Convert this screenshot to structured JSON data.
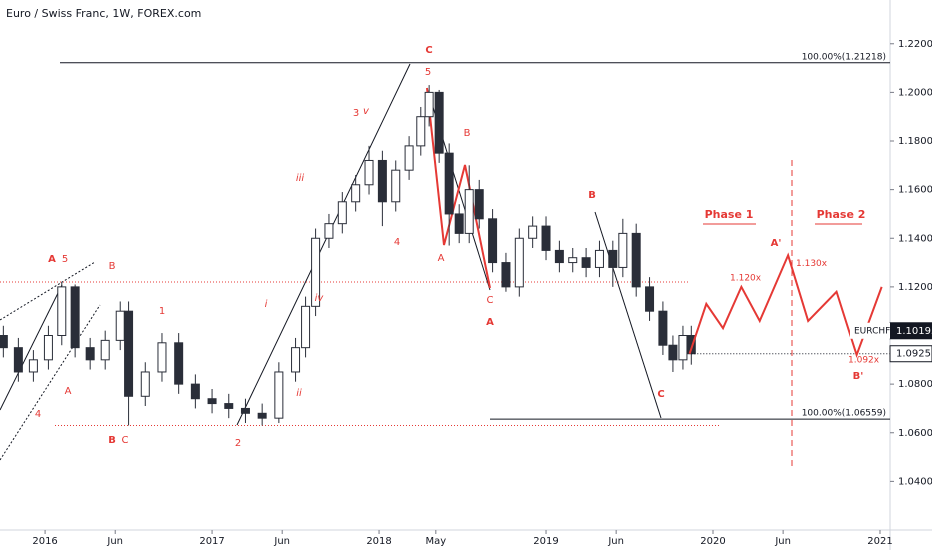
{
  "chart_data": {
    "type": "candlestick",
    "title": "Euro / Swiss Franc, 1W, FOREX.com",
    "symbol": "EURCHF",
    "color": "#2a2e39",
    "x": [
      2015.75,
      2015.84,
      2015.93,
      2016.02,
      2016.1,
      2016.18,
      2016.27,
      2016.36,
      2016.45,
      2016.5,
      2016.6,
      2016.7,
      2016.8,
      2016.9,
      2017.0,
      2017.1,
      2017.2,
      2017.3,
      2017.4,
      2017.5,
      2017.56,
      2017.62,
      2017.7,
      2017.78,
      2017.86,
      2017.94,
      2018.02,
      2018.1,
      2018.18,
      2018.25,
      2018.3,
      2018.36,
      2018.42,
      2018.48,
      2018.54,
      2018.6,
      2018.68,
      2018.76,
      2018.84,
      2018.92,
      2019.0,
      2019.08,
      2019.16,
      2019.24,
      2019.32,
      2019.4,
      2019.46,
      2019.54,
      2019.62,
      2019.7,
      2019.76,
      2019.82,
      2019.87
    ],
    "open": [
      1.1,
      1.095,
      1.085,
      1.09,
      1.1,
      1.12,
      1.095,
      1.09,
      1.098,
      1.11,
      1.075,
      1.085,
      1.097,
      1.08,
      1.074,
      1.072,
      1.07,
      1.068,
      1.066,
      1.085,
      1.095,
      1.112,
      1.14,
      1.146,
      1.155,
      1.162,
      1.172,
      1.155,
      1.168,
      1.178,
      1.19,
      1.2,
      1.175,
      1.15,
      1.142,
      1.16,
      1.148,
      1.13,
      1.12,
      1.14,
      1.145,
      1.135,
      1.13,
      1.132,
      1.128,
      1.135,
      1.128,
      1.142,
      1.12,
      1.11,
      1.096,
      1.09,
      1.1
    ],
    "high": [
      1.104,
      1.099,
      1.094,
      1.104,
      1.122,
      1.121,
      1.099,
      1.102,
      1.114,
      1.114,
      1.089,
      1.101,
      1.101,
      1.084,
      1.078,
      1.076,
      1.074,
      1.072,
      1.089,
      1.099,
      1.116,
      1.144,
      1.15,
      1.159,
      1.166,
      1.178,
      1.176,
      1.172,
      1.182,
      1.194,
      1.203,
      1.201,
      1.179,
      1.154,
      1.17,
      1.164,
      1.152,
      1.134,
      1.144,
      1.149,
      1.149,
      1.139,
      1.136,
      1.136,
      1.139,
      1.139,
      1.148,
      1.146,
      1.124,
      1.114,
      1.1,
      1.104,
      1.104
    ],
    "low": [
      1.091,
      1.081,
      1.081,
      1.086,
      1.096,
      1.091,
      1.086,
      1.086,
      1.094,
      1.063,
      1.071,
      1.081,
      1.076,
      1.07,
      1.068,
      1.066,
      1.064,
      1.063,
      1.064,
      1.081,
      1.091,
      1.108,
      1.136,
      1.142,
      1.151,
      1.158,
      1.145,
      1.151,
      1.164,
      1.174,
      1.186,
      1.171,
      1.137,
      1.138,
      1.138,
      1.144,
      1.126,
      1.118,
      1.116,
      1.136,
      1.131,
      1.126,
      1.126,
      1.124,
      1.124,
      1.12,
      1.124,
      1.116,
      1.106,
      1.092,
      1.085,
      1.086,
      1.088
    ],
    "close": [
      1.095,
      1.085,
      1.09,
      1.1,
      1.12,
      1.095,
      1.09,
      1.098,
      1.11,
      1.075,
      1.085,
      1.097,
      1.08,
      1.074,
      1.072,
      1.07,
      1.068,
      1.066,
      1.085,
      1.095,
      1.112,
      1.14,
      1.146,
      1.155,
      1.162,
      1.172,
      1.155,
      1.168,
      1.178,
      1.19,
      1.2,
      1.175,
      1.15,
      1.142,
      1.16,
      1.148,
      1.13,
      1.12,
      1.14,
      1.145,
      1.135,
      1.13,
      1.132,
      1.128,
      1.135,
      1.128,
      1.142,
      1.12,
      1.11,
      1.096,
      1.09,
      1.1,
      1.0925
    ],
    "projection": {
      "color": "#e53935",
      "x": [
        2019.86,
        2019.96,
        2020.06,
        2020.17,
        2020.28,
        2020.45,
        2020.57,
        2020.74,
        2020.86,
        2021.01
      ],
      "y": [
        1.0925,
        1.113,
        1.103,
        1.12,
        1.106,
        1.133,
        1.106,
        1.118,
        1.092,
        1.12
      ]
    },
    "xlim": [
      2015.73,
      2021.06
    ],
    "ylim": [
      1.02,
      1.238
    ],
    "xticks": [
      {
        "value": 2016,
        "label": "2016"
      },
      {
        "value": 2016.42,
        "label": "Jun"
      },
      {
        "value": 2017,
        "label": "2017"
      },
      {
        "value": 2017.42,
        "label": "Jun"
      },
      {
        "value": 2018,
        "label": "2018"
      },
      {
        "value": 2018.34,
        "label": "May"
      },
      {
        "value": 2019,
        "label": "2019"
      },
      {
        "value": 2019.42,
        "label": "Jun"
      },
      {
        "value": 2020,
        "label": "2020"
      },
      {
        "value": 2020.42,
        "label": "Jun"
      },
      {
        "value": 2021,
        "label": "2021"
      }
    ],
    "yticks": [
      {
        "value": 1.04,
        "label": "1.04000"
      },
      {
        "value": 1.06,
        "label": "1.06000"
      },
      {
        "value": 1.08,
        "label": "1.08000"
      },
      {
        "value": 1.12,
        "label": "1.12000"
      },
      {
        "value": 1.14,
        "label": "1.14000"
      },
      {
        "value": 1.16,
        "label": "1.16000"
      },
      {
        "value": 1.18,
        "label": "1.18000"
      },
      {
        "value": 1.2,
        "label": "1.20000"
      },
      {
        "value": 1.22,
        "label": "1.22000"
      }
    ],
    "price_tags": [
      {
        "value": 1.10195,
        "label": "1.10195"
      },
      {
        "value": 1.0925,
        "label": "1.09250"
      }
    ],
    "fib_levels": [
      {
        "value": 1.21218,
        "label": "100.00%(1.21218)"
      },
      {
        "value": 1.06559,
        "label": "100.00%(1.06559)"
      }
    ],
    "wave_labels": [
      "C",
      "5",
      "3",
      "v",
      "B",
      "iii",
      "4",
      "A",
      "C",
      "A",
      "i",
      "iv",
      "ii",
      "2",
      "1",
      "A",
      "5",
      "B",
      "A",
      "4",
      "B",
      "C",
      "B",
      "C",
      "A'",
      "B'"
    ],
    "phase_labels": [
      "Phase 1",
      "Phase 2"
    ],
    "targets": [
      {
        "value": 1.13,
        "label": "1.130x"
      },
      {
        "value": 1.12,
        "label": "1.120x"
      },
      {
        "value": 1.092,
        "label": "1.092x"
      }
    ]
  }
}
